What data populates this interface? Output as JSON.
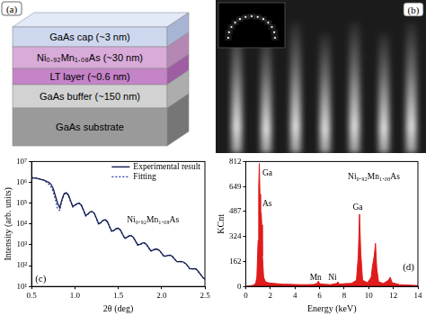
{
  "panel_a": {
    "label": "(a)",
    "layers": [
      "GaAs cap (~3 nm)",
      "Ni₀.₉₂Mn₁.₀₈As (~30 nm)",
      "LT layer (~0.6 nm)",
      "GaAs buffer (~150 nm)",
      "GaAs substrate"
    ]
  },
  "panel_b": {
    "label": "(b)"
  },
  "chart_data": [
    {
      "panel_label": "(c)",
      "type": "line",
      "x_label": "2θ (deg)",
      "y_label": "Intensity (arb. units)",
      "x": [
        0.5,
        0.525,
        0.55,
        0.575,
        0.6,
        0.625,
        0.65,
        0.675,
        0.7,
        0.725,
        0.75,
        0.775,
        0.8,
        0.825,
        0.85,
        0.875,
        0.9,
        0.925,
        0.95,
        0.975,
        1.0,
        1.025,
        1.05,
        1.075,
        1.1,
        1.125,
        1.15,
        1.175,
        1.2,
        1.225,
        1.25,
        1.275,
        1.3,
        1.325,
        1.35,
        1.375,
        1.4,
        1.425,
        1.45,
        1.475,
        1.5,
        1.525,
        1.55,
        1.575,
        1.6,
        1.625,
        1.65,
        1.675,
        1.7,
        1.725,
        1.75,
        1.775,
        1.8,
        1.825,
        1.85,
        1.875,
        1.9,
        1.925,
        1.95,
        1.975,
        2.0,
        2.025,
        2.05,
        2.075,
        2.1,
        2.125,
        2.15,
        2.175,
        2.2,
        2.225,
        2.25,
        2.275,
        2.3,
        2.325,
        2.35,
        2.375,
        2.4,
        2.425,
        2.45,
        2.475,
        2.5
      ],
      "series": [
        {
          "name": "Experimental result",
          "color": "#101a4a",
          "line_style": "solid",
          "values": [
            1600000,
            1600000,
            1580000,
            1500000,
            1420000,
            1350000,
            1250000,
            1100000,
            1000000,
            800000,
            500000,
            220000,
            100000,
            60000,
            150000,
            280000,
            320000,
            250000,
            130000,
            70000,
            80000,
            95000,
            100000,
            80000,
            45000,
            25000,
            30000,
            38000,
            40000,
            32000,
            18000,
            10000,
            12000,
            15000,
            16000,
            13000,
            7500,
            4500,
            5000,
            6000,
            6300,
            5200,
            3200,
            2100,
            2300,
            2700,
            2800,
            2300,
            1500,
            1000,
            1050,
            1200,
            1250,
            1050,
            750,
            520,
            550,
            620,
            630,
            540,
            400,
            290,
            290,
            310,
            320,
            280,
            210,
            160,
            155,
            160,
            150,
            130,
            100,
            72,
            70,
            72,
            68,
            52,
            38,
            28,
            22
          ]
        },
        {
          "name": "Fitting",
          "color": "#3347b0",
          "line_style": "dotted",
          "values": [
            1700000,
            1650000,
            1600000,
            1550000,
            1450000,
            1350000,
            1200000,
            1000000,
            800000,
            600000,
            350000,
            150000,
            50000,
            45000,
            130000,
            260000,
            310000,
            240000,
            120000,
            65000,
            78000,
            93000,
            98000,
            78000,
            43000,
            24000,
            29000,
            37000,
            39000,
            31000,
            17000,
            9500,
            11500,
            14500,
            15500,
            12500,
            7200,
            4300,
            4800,
            5800,
            6100,
            5000,
            3100,
            2000,
            2200,
            2600,
            2700,
            2200,
            1450,
            950,
            1000,
            1150,
            1200,
            1000,
            720,
            500,
            530,
            600,
            610,
            520,
            390,
            280,
            280,
            300,
            310,
            270,
            200,
            155,
            150,
            155,
            145,
            125,
            97,
            70,
            68,
            70,
            66,
            50,
            37,
            27,
            21
          ]
        }
      ],
      "xlim": [
        0.5,
        2.5
      ],
      "xticks": [
        0.5,
        {
          "value": 1,
          "label": "1.0"
        },
        1.5,
        {
          "value": 2,
          "label": "2.0"
        },
        2.5
      ],
      "ylim": [
        10,
        10000000
      ],
      "yticks": [
        {
          "value": 10,
          "label": "10¹"
        },
        {
          "value": 100,
          "label": "10²"
        },
        {
          "value": 1000,
          "label": "10³"
        },
        {
          "value": 10000,
          "label": "10⁴"
        },
        {
          "value": 100000,
          "label": "10⁵"
        },
        {
          "value": 1000000,
          "label": "10⁶"
        },
        {
          "value": 10000000,
          "label": "10⁷"
        }
      ],
      "log": "y",
      "grid": false,
      "legend": "upper right",
      "annotations": [
        {
          "text": "Ni₀.₉₂Mn₁.₀₈As",
          "x": 1.6,
          "y": 12000
        }
      ]
    },
    {
      "panel_label": "(d)",
      "type": "area",
      "x_label": "Energy (keV)",
      "y_label": "KCnt",
      "color": "#e01b1b",
      "x": [
        0,
        0.2,
        0.4,
        0.6,
        0.8,
        0.9,
        1.0,
        1.05,
        1.1,
        1.15,
        1.2,
        1.25,
        1.3,
        1.35,
        1.45,
        1.6,
        1.8,
        2.0,
        2.5,
        3.0,
        3.5,
        4.0,
        4.5,
        5.0,
        5.5,
        5.8,
        5.9,
        6.0,
        6.4,
        6.9,
        7.4,
        7.5,
        7.6,
        8.0,
        8.6,
        9.0,
        9.15,
        9.25,
        9.35,
        9.5,
        9.9,
        10.2,
        10.3,
        10.45,
        10.55,
        10.65,
        10.8,
        11.2,
        11.6,
        11.75,
        11.9,
        12.5,
        13,
        13.5,
        14
      ],
      "values": [
        0,
        2,
        5,
        8,
        20,
        60,
        300,
        650,
        800,
        600,
        420,
        480,
        400,
        200,
        60,
        30,
        25,
        22,
        18,
        15,
        14,
        13,
        12,
        12,
        13,
        20,
        35,
        18,
        14,
        12,
        20,
        30,
        15,
        18,
        20,
        40,
        200,
        470,
        220,
        40,
        25,
        60,
        130,
        200,
        280,
        120,
        30,
        20,
        40,
        60,
        25,
        12,
        10,
        8,
        6
      ],
      "xlim": [
        0,
        14
      ],
      "xticks": [
        0,
        2,
        4,
        6,
        8,
        10,
        12,
        14
      ],
      "ylim": [
        0,
        812
      ],
      "yticks": [
        0,
        162,
        324,
        487,
        649,
        812
      ],
      "grid": false,
      "annotations": [
        {
          "text": "Ga",
          "x": 1.35,
          "y": 720
        },
        {
          "text": "As",
          "x": 1.35,
          "y": 520
        },
        {
          "text": "Mn",
          "x": 5.2,
          "y": 45
        },
        {
          "text": "Ni",
          "x": 6.7,
          "y": 45
        },
        {
          "text": "Ga",
          "x": 8.7,
          "y": 500
        },
        {
          "text": "Ni₀.₉₂Mn₁.₀₈As",
          "x": 8.3,
          "y": 700
        }
      ]
    }
  ]
}
